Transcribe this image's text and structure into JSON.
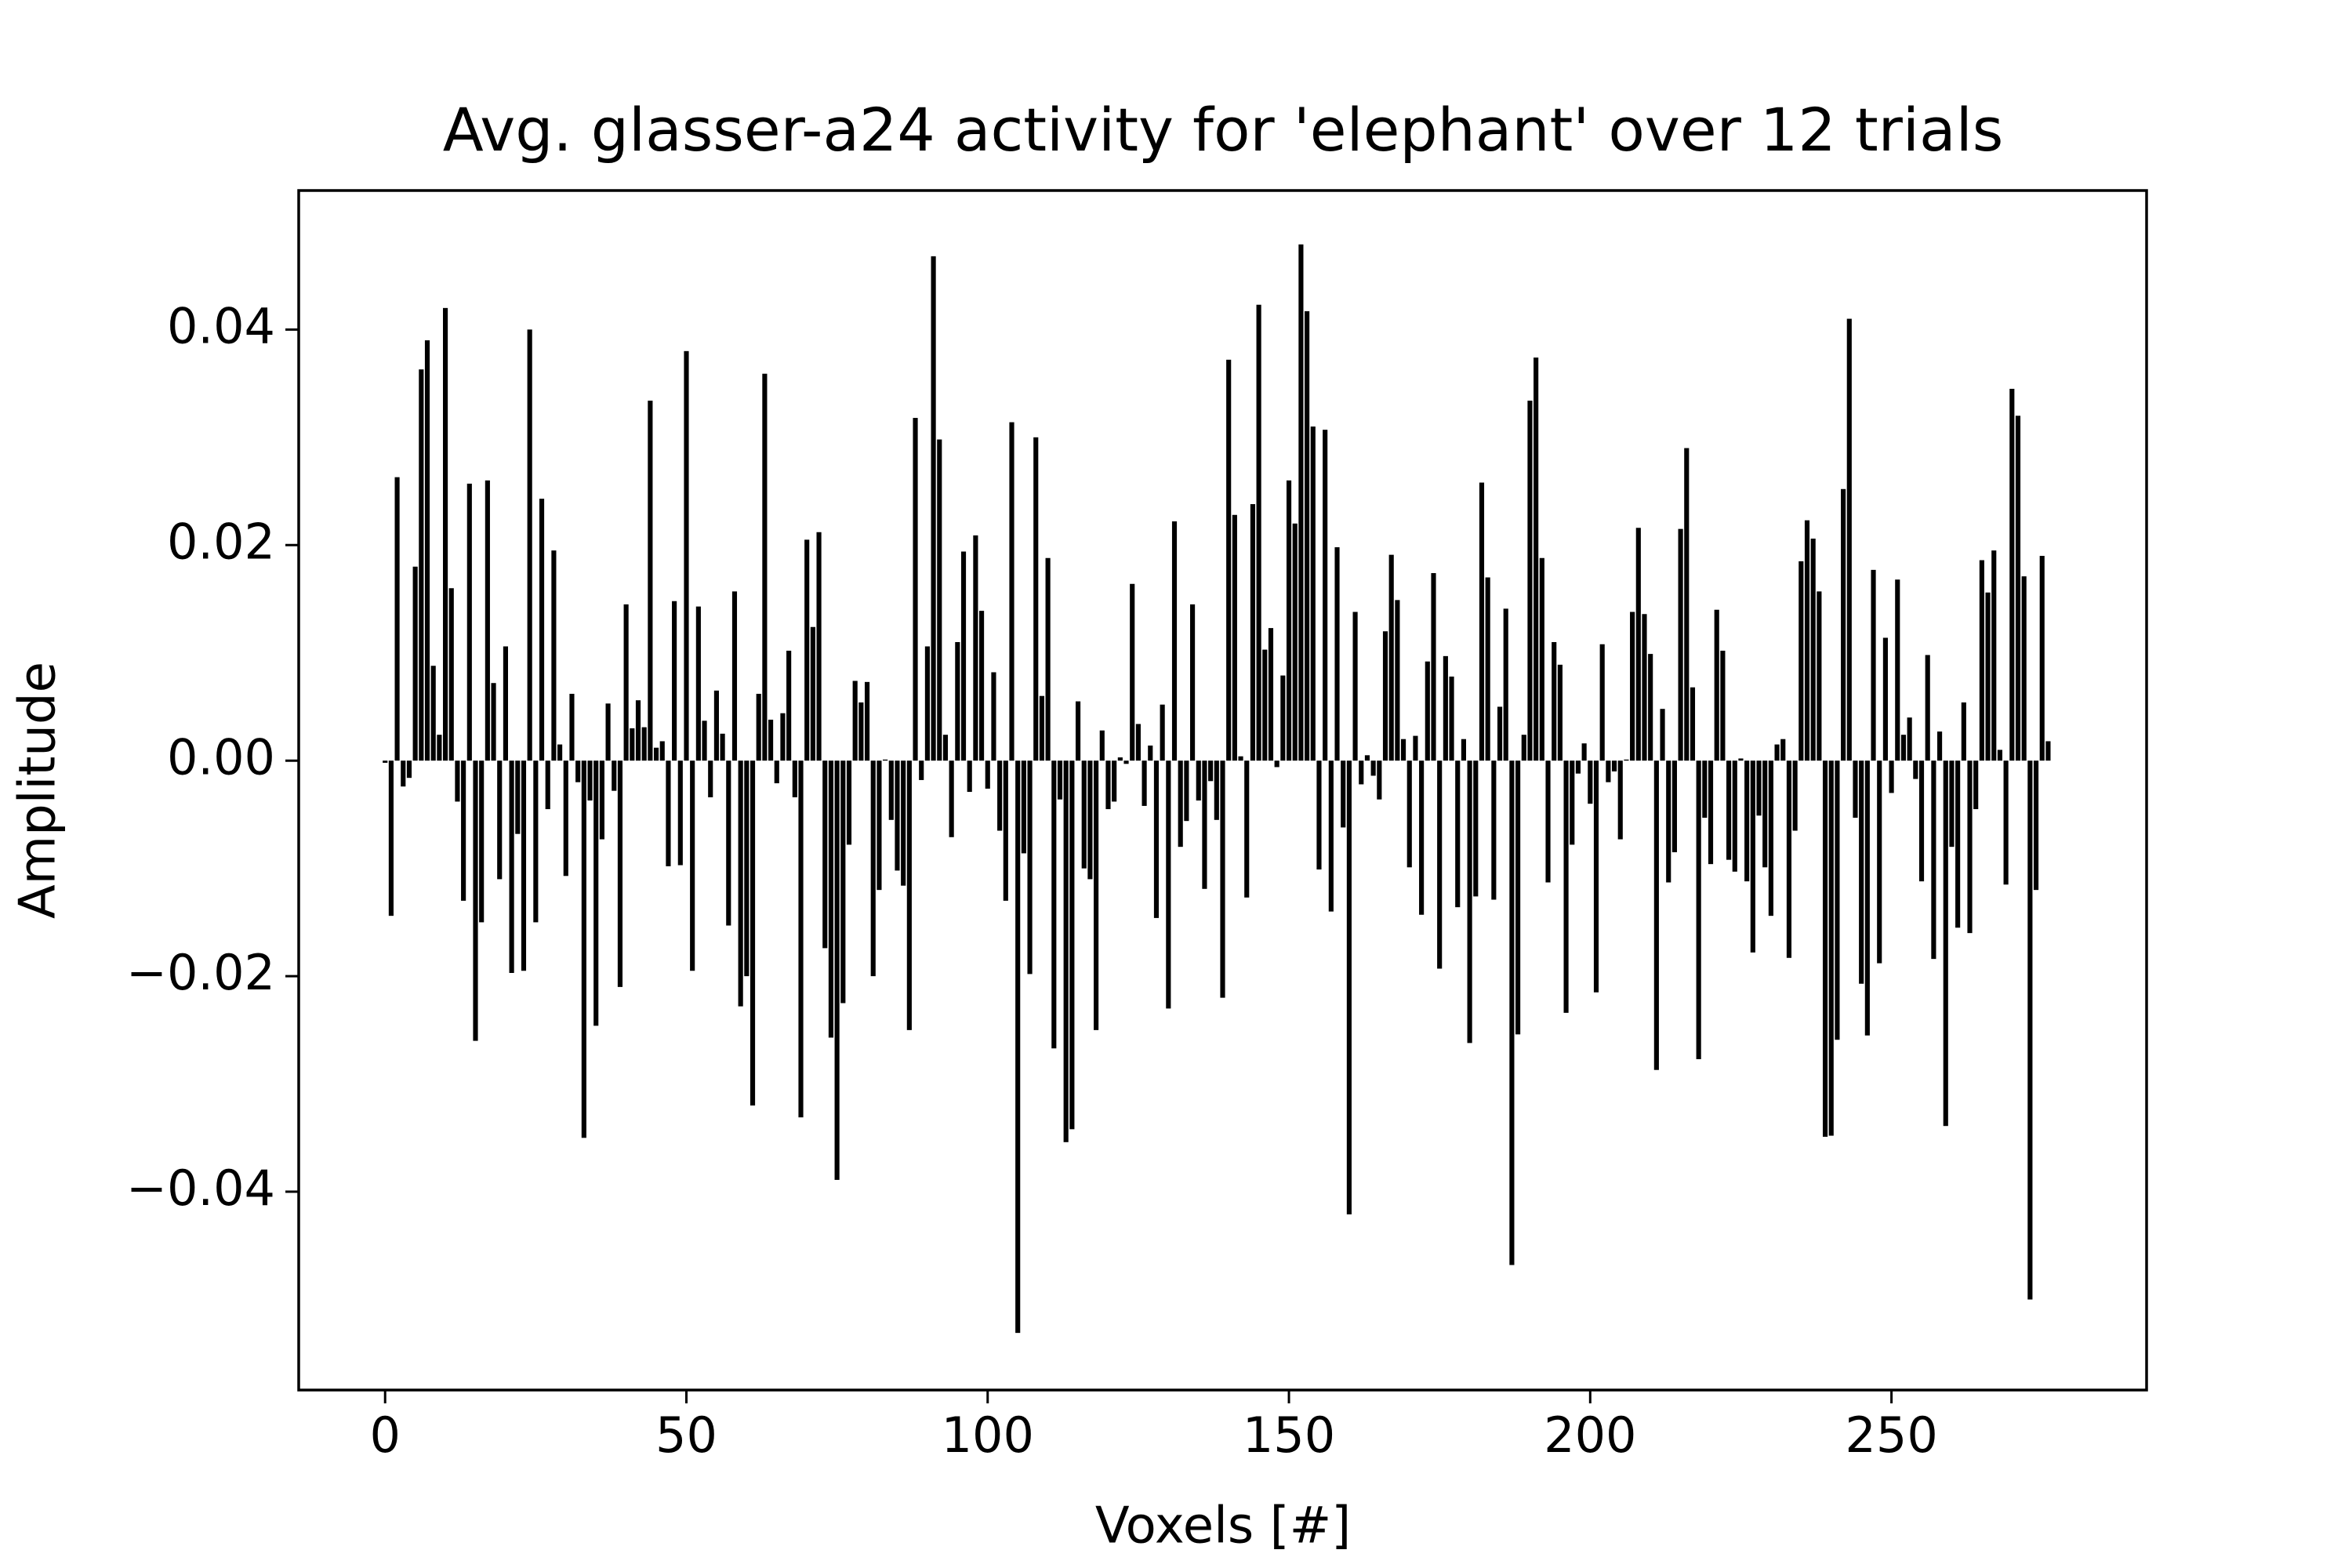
{
  "chart_data": {
    "type": "bar",
    "title": "Avg. glasser-a24 activity for 'elephant' over 12 trials",
    "xlabel": "Voxels [#]",
    "ylabel": "Amplitude",
    "color": "#000000",
    "xlim": [
      -14.34,
      292.34
    ],
    "ylim": [
      -0.0584,
      0.0529
    ],
    "xticks": [
      0,
      50,
      100,
      150,
      200,
      250
    ],
    "yticks": [
      {
        "value": -0.04,
        "label": "−0.04"
      },
      {
        "value": -0.02,
        "label": "−0.02"
      },
      {
        "value": 0,
        "label": "0.00"
      },
      0.02,
      0.04
    ],
    "x": [
      0,
      1,
      2,
      3,
      4,
      5,
      6,
      7,
      8,
      9,
      10,
      11,
      12,
      13,
      14,
      15,
      16,
      17,
      18,
      19,
      20,
      21,
      22,
      23,
      24,
      25,
      26,
      27,
      28,
      29,
      30,
      31,
      32,
      33,
      34,
      35,
      36,
      37,
      38,
      39,
      40,
      41,
      42,
      43,
      44,
      45,
      46,
      47,
      48,
      49,
      50,
      51,
      52,
      53,
      54,
      55,
      56,
      57,
      58,
      59,
      60,
      61,
      62,
      63,
      64,
      65,
      66,
      67,
      68,
      69,
      70,
      71,
      72,
      73,
      74,
      75,
      76,
      77,
      78,
      79,
      80,
      81,
      82,
      83,
      84,
      85,
      86,
      87,
      88,
      89,
      90,
      91,
      92,
      93,
      94,
      95,
      96,
      97,
      98,
      99,
      100,
      101,
      102,
      103,
      104,
      105,
      106,
      107,
      108,
      109,
      110,
      111,
      112,
      113,
      114,
      115,
      116,
      117,
      118,
      119,
      120,
      121,
      122,
      123,
      124,
      125,
      126,
      127,
      128,
      129,
      130,
      131,
      132,
      133,
      134,
      135,
      136,
      137,
      138,
      139,
      140,
      141,
      142,
      143,
      144,
      145,
      146,
      147,
      148,
      149,
      150,
      151,
      152,
      153,
      154,
      155,
      156,
      157,
      158,
      159,
      160,
      161,
      162,
      163,
      164,
      165,
      166,
      167,
      168,
      169,
      170,
      171,
      172,
      173,
      174,
      175,
      176,
      177,
      178,
      179,
      180,
      181,
      182,
      183,
      184,
      185,
      186,
      187,
      188,
      189,
      190,
      191,
      192,
      193,
      194,
      195,
      196,
      197,
      198,
      199,
      200,
      201,
      202,
      203,
      204,
      205,
      206,
      207,
      208,
      209,
      210,
      211,
      212,
      213,
      214,
      215,
      216,
      217,
      218,
      219,
      220,
      221,
      222,
      223,
      224,
      225,
      226,
      227,
      228,
      229,
      230,
      231,
      232,
      233,
      234,
      235,
      236,
      237,
      238,
      239,
      240,
      241,
      242,
      243,
      244,
      245,
      246,
      247,
      248,
      249,
      250,
      251,
      252,
      253,
      254,
      255,
      256,
      257,
      258,
      259,
      260,
      261,
      262,
      263,
      264,
      265,
      266,
      267,
      268,
      269,
      270,
      271,
      272,
      273,
      274,
      275,
      276
    ],
    "values": [
      -0.0002,
      -0.0144,
      0.0263,
      -0.0024,
      -0.0016,
      0.018,
      0.0363,
      0.039,
      0.0088,
      0.0024,
      0.042,
      0.016,
      -0.0038,
      -0.013,
      0.0257,
      -0.026,
      -0.015,
      0.026,
      0.0072,
      -0.011,
      0.0106,
      -0.0197,
      -0.0068,
      -0.0195,
      0.04,
      -0.015,
      0.0243,
      -0.0045,
      0.0195,
      0.0015,
      -0.0107,
      0.0062,
      -0.002,
      -0.035,
      -0.0037,
      -0.0246,
      -0.0073,
      0.0053,
      -0.0028,
      -0.021,
      0.0145,
      0.003,
      0.0056,
      0.0031,
      0.0334,
      0.0012,
      0.0018,
      -0.0098,
      0.0148,
      -0.0097,
      0.038,
      -0.0195,
      0.0143,
      0.0037,
      -0.0034,
      0.0065,
      0.0025,
      -0.0153,
      0.0157,
      -0.0228,
      -0.02,
      -0.032,
      0.0062,
      0.0359,
      0.0038,
      -0.0021,
      0.0044,
      0.0102,
      -0.0034,
      -0.0331,
      0.0205,
      0.0124,
      0.0212,
      -0.0174,
      -0.0257,
      -0.0389,
      -0.0225,
      -0.0078,
      0.0074,
      0.0054,
      0.0073,
      -0.02,
      -0.012,
      0.0001,
      -0.0055,
      -0.0102,
      -0.0116,
      -0.025,
      0.0318,
      -0.0018,
      0.0106,
      0.0468,
      0.0298,
      0.0024,
      -0.0071,
      0.011,
      0.0194,
      -0.0029,
      0.0209,
      0.0139,
      -0.0026,
      0.0082,
      -0.0065,
      -0.013,
      0.0314,
      -0.0531,
      -0.0086,
      -0.0198,
      0.03,
      0.006,
      0.0188,
      -0.0267,
      -0.0036,
      -0.0354,
      -0.0342,
      0.0055,
      -0.01,
      -0.011,
      -0.025,
      0.0028,
      -0.0045,
      -0.0038,
      0.0003,
      -0.0003,
      0.0164,
      0.0034,
      -0.0042,
      0.0014,
      -0.0146,
      0.0052,
      -0.023,
      0.0222,
      -0.008,
      -0.0056,
      0.0145,
      -0.0037,
      -0.0119,
      -0.0019,
      -0.0055,
      -0.022,
      0.0372,
      0.0228,
      0.0004,
      -0.0127,
      0.0238,
      0.0423,
      0.0103,
      0.0123,
      -0.0006,
      0.0079,
      0.026,
      0.022,
      0.0479,
      0.0417,
      0.031,
      -0.0101,
      0.0307,
      -0.014,
      0.0198,
      -0.0062,
      -0.0421,
      0.0138,
      -0.0022,
      0.0005,
      -0.0014,
      -0.0036,
      0.012,
      0.0191,
      0.0149,
      0.002,
      -0.0099,
      0.0023,
      -0.0143,
      0.0092,
      0.0174,
      -0.0193,
      0.0097,
      0.0078,
      -0.0136,
      0.002,
      -0.0262,
      -0.0126,
      0.0258,
      0.017,
      -0.0129,
      0.005,
      0.0141,
      -0.0468,
      -0.0254,
      0.0024,
      0.0334,
      0.0374,
      0.0188,
      -0.0113,
      0.011,
      0.0089,
      -0.0234,
      -0.0078,
      -0.0012,
      0.0016,
      -0.004,
      -0.0215,
      0.0108,
      -0.002,
      -0.001,
      -0.0073,
      0.0001,
      0.0138,
      0.0216,
      0.0136,
      0.0099,
      -0.0287,
      0.0048,
      -0.0113,
      -0.0085,
      0.0215,
      0.029,
      0.0068,
      -0.0277,
      -0.0053,
      -0.0096,
      0.014,
      0.0102,
      -0.0092,
      -0.0103,
      0.0002,
      -0.0112,
      -0.0178,
      -0.0051,
      -0.0099,
      -0.0144,
      0.0015,
      0.002,
      -0.0183,
      -0.0065,
      0.0185,
      0.0223,
      0.0206,
      0.0157,
      -0.0349,
      -0.0348,
      -0.0259,
      0.0252,
      0.041,
      -0.0053,
      -0.0207,
      -0.0255,
      0.0177,
      -0.0188,
      0.0114,
      -0.003,
      0.0168,
      0.0024,
      0.004,
      -0.0017,
      -0.0112,
      0.0098,
      -0.0184,
      0.0027,
      -0.0339,
      -0.008,
      -0.0155,
      0.0054,
      -0.016,
      -0.0045,
      0.0186,
      0.0156,
      0.0195,
      0.001,
      -0.0115,
      0.0345,
      0.032,
      0.0171,
      -0.05,
      -0.012,
      0.019,
      0.0018
    ]
  }
}
